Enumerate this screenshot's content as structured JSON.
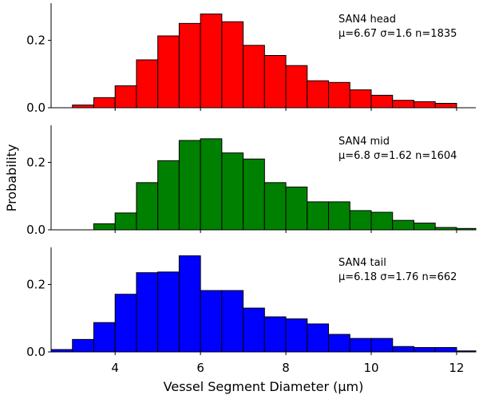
{
  "chart_data": {
    "type": "bar",
    "xlabel": "Vessel Segment Diameter (μm)",
    "ylabel": "Probability",
    "xlim": [
      2.5,
      12.45
    ],
    "xticks": [
      "4",
      "6",
      "8",
      "10",
      "12"
    ],
    "bin_width": 0.5,
    "shared_x": true,
    "panels": [
      {
        "annotation": {
          "line1": "SAN4 head",
          "line2": "μ=6.67 σ=1.6 n=1835"
        },
        "color": "#ff0000",
        "ylim": [
          0,
          0.31
        ],
        "yticks": [
          "0.0",
          "0.2"
        ],
        "bin_starts": [
          3.0,
          3.5,
          4.0,
          4.5,
          5.0,
          5.5,
          6.0,
          6.5,
          7.0,
          7.5,
          8.0,
          8.5,
          9.0,
          9.5,
          10.0,
          10.5,
          11.0,
          11.5
        ],
        "values": [
          0.008,
          0.03,
          0.065,
          0.142,
          0.213,
          0.25,
          0.278,
          0.255,
          0.185,
          0.155,
          0.125,
          0.08,
          0.075,
          0.053,
          0.037,
          0.022,
          0.018,
          0.013
        ]
      },
      {
        "annotation": {
          "line1": "SAN4 mid",
          "line2": "μ=6.8 σ=1.62 n=1604"
        },
        "color": "#008000",
        "ylim": [
          0,
          0.31
        ],
        "yticks": [
          "0.0",
          "0.2"
        ],
        "bin_starts": [
          3.5,
          4.0,
          4.5,
          5.0,
          5.5,
          6.0,
          6.5,
          7.0,
          7.5,
          8.0,
          8.5,
          9.0,
          9.5,
          10.0,
          10.5,
          11.0,
          11.5,
          12.0
        ],
        "values": [
          0.018,
          0.05,
          0.14,
          0.205,
          0.265,
          0.27,
          0.228,
          0.21,
          0.14,
          0.127,
          0.083,
          0.083,
          0.057,
          0.052,
          0.028,
          0.02,
          0.007,
          0.004
        ]
      },
      {
        "annotation": {
          "line1": "SAN4 tail",
          "line2": "μ=6.18 σ=1.76 n=662"
        },
        "color": "#0000ff",
        "ylim": [
          0,
          0.31
        ],
        "yticks": [
          "0.0",
          "0.2"
        ],
        "bin_starts": [
          2.5,
          3.0,
          3.5,
          4.0,
          4.5,
          5.0,
          5.5,
          6.0,
          6.5,
          7.0,
          7.5,
          8.0,
          8.5,
          9.0,
          9.5,
          10.0,
          10.5,
          11.0,
          11.5,
          12.0
        ],
        "values": [
          0.007,
          0.037,
          0.087,
          0.171,
          0.235,
          0.237,
          0.285,
          0.182,
          0.182,
          0.13,
          0.104,
          0.098,
          0.083,
          0.052,
          0.04,
          0.04,
          0.016,
          0.013,
          0.013,
          0.003
        ]
      }
    ]
  }
}
